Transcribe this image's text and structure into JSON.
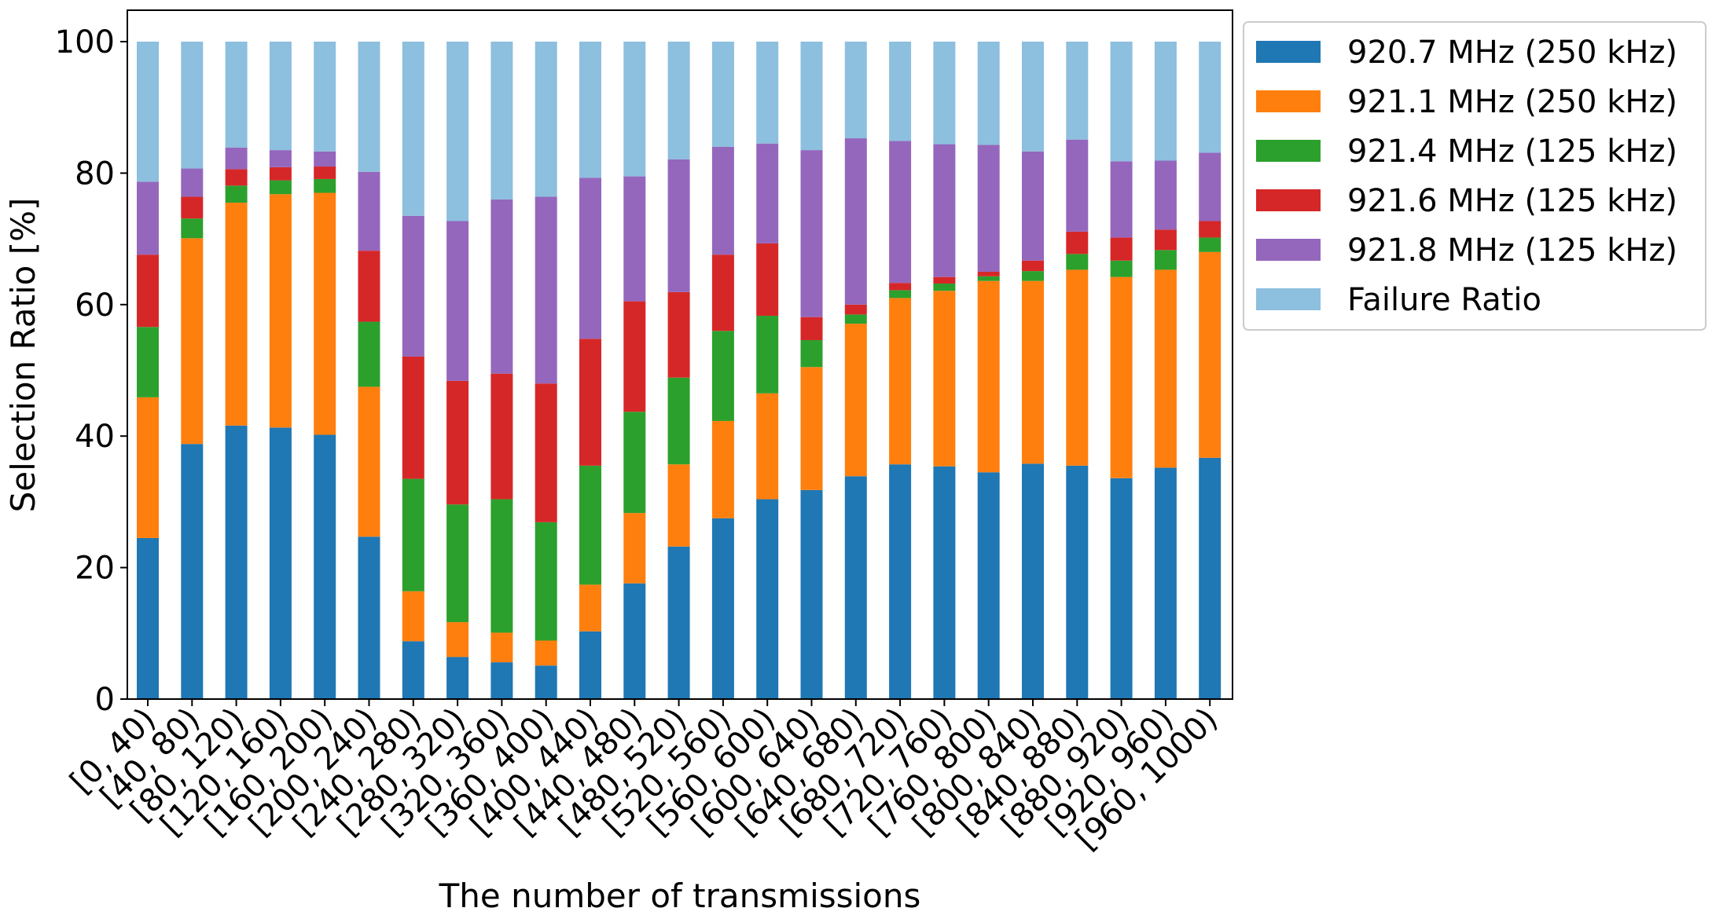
{
  "chart_data": {
    "type": "bar",
    "stacked": true,
    "title": "",
    "xlabel": "The number of transmissions",
    "ylabel": "Selection Ratio [%]",
    "ylim": [
      0,
      105
    ],
    "yticks": [
      0,
      20,
      40,
      60,
      80,
      100
    ],
    "grid": false,
    "legend_position": "outside-top-right",
    "categories": [
      "[0, 40)",
      "[40, 80)",
      "[80, 120)",
      "[120, 160)",
      "[160, 200)",
      "[200, 240)",
      "[240, 280)",
      "[280, 320)",
      "[320, 360)",
      "[360, 400)",
      "[400, 440)",
      "[440, 480)",
      "[480, 520)",
      "[520, 560)",
      "[560, 600)",
      "[600, 640)",
      "[640, 680)",
      "[680, 720)",
      "[720, 760)",
      "[760, 800)",
      "[800, 840)",
      "[840, 880)",
      "[880, 920)",
      "[920, 960)",
      "[960, 1000)"
    ],
    "series": [
      {
        "name": "920.7 MHz (250 kHz)",
        "color": "#1f77b4",
        "values": [
          24.5,
          38.8,
          41.6,
          41.3,
          40.2,
          24.7,
          8.8,
          6.4,
          5.6,
          5.1,
          10.3,
          17.6,
          23.2,
          27.5,
          30.4,
          31.8,
          33.9,
          35.7,
          35.4,
          34.5,
          35.8,
          35.5,
          33.6,
          35.2,
          36.7
        ]
      },
      {
        "name": "921.1 MHz (250 kHz)",
        "color": "#ff7f0e",
        "values": [
          21.4,
          31.3,
          33.9,
          35.5,
          36.8,
          22.8,
          7.6,
          5.3,
          4.5,
          3.8,
          7.1,
          10.7,
          12.5,
          14.8,
          16.1,
          18.7,
          23.2,
          25.3,
          26.7,
          29.1,
          27.8,
          29.8,
          30.6,
          30.1,
          31.3
        ]
      },
      {
        "name": "921.4 MHz (125 kHz)",
        "color": "#2ca02c",
        "values": [
          10.7,
          3.0,
          2.6,
          2.1,
          2.1,
          9.9,
          17.1,
          17.9,
          20.3,
          18.0,
          18.1,
          15.4,
          13.2,
          13.7,
          11.8,
          4.1,
          1.4,
          1.2,
          1.1,
          0.7,
          1.5,
          2.4,
          2.5,
          3.0,
          2.2
        ]
      },
      {
        "name": "921.6 MHz (125 kHz)",
        "color": "#d62728",
        "values": [
          11.0,
          3.3,
          2.5,
          2.0,
          1.9,
          10.8,
          18.6,
          18.8,
          19.1,
          21.1,
          19.3,
          16.8,
          13.0,
          11.6,
          11.0,
          3.5,
          1.5,
          1.1,
          1.0,
          0.7,
          1.6,
          3.4,
          3.5,
          3.1,
          2.5
        ]
      },
      {
        "name": "921.8 MHz (125 kHz)",
        "color": "#9467bd",
        "values": [
          11.1,
          4.3,
          3.3,
          2.6,
          2.3,
          12.0,
          21.4,
          24.3,
          26.5,
          28.4,
          24.5,
          19.0,
          20.2,
          16.4,
          15.2,
          25.4,
          25.3,
          21.6,
          20.2,
          19.3,
          16.6,
          14.0,
          11.6,
          10.5,
          10.4
        ]
      },
      {
        "name": "Failure Ratio",
        "color": "#8dbfde",
        "values": [
          21.3,
          19.3,
          16.1,
          16.5,
          16.7,
          19.8,
          26.5,
          27.3,
          24.0,
          23.6,
          20.7,
          20.5,
          17.9,
          16.0,
          15.5,
          16.5,
          14.7,
          15.1,
          15.6,
          15.7,
          16.7,
          14.9,
          18.2,
          18.1,
          16.9
        ]
      }
    ]
  }
}
